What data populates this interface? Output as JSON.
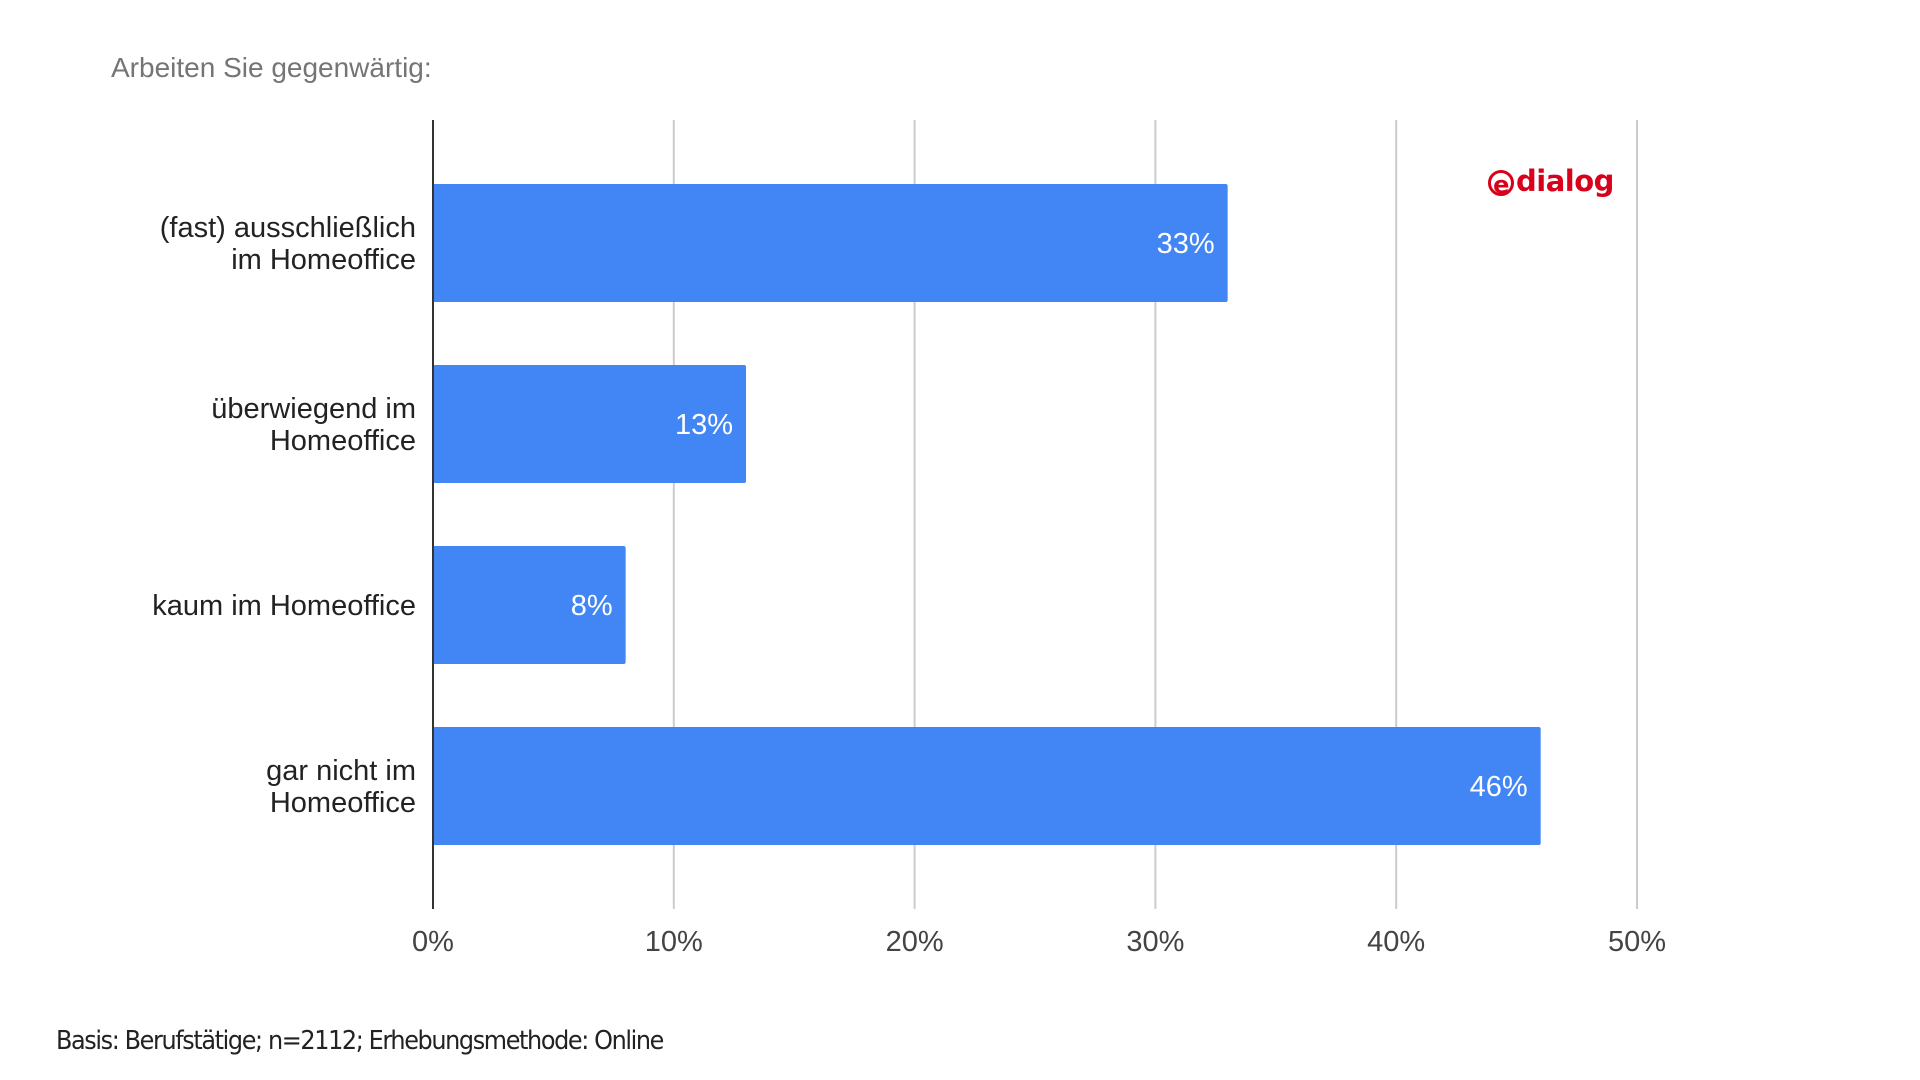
{
  "chart_data": {
    "type": "bar",
    "orientation": "horizontal",
    "title": "Arbeiten Sie gegenwärtig:",
    "categories": [
      [
        "(fast) ausschließlich",
        "im Homeoffice"
      ],
      [
        "überwiegend im",
        "Homeoffice"
      ],
      [
        "kaum im Homeoffice"
      ],
      [
        "gar nicht im",
        "Homeoffice"
      ]
    ],
    "values": [
      33,
      13,
      8,
      46
    ],
    "value_labels": [
      "33%",
      "13%",
      "8%",
      "46%"
    ],
    "xlim": [
      0,
      50
    ],
    "xticks": [
      0,
      10,
      20,
      30,
      40,
      50
    ],
    "xtick_labels": [
      "0%",
      "10%",
      "20%",
      "30%",
      "40%",
      "50%"
    ],
    "xlabel": "",
    "ylabel": "",
    "grid": true,
    "bar_color": "#4285f4"
  },
  "logo": {
    "text": "@dialog",
    "e": "e",
    "rest": "dialog",
    "color": "#d9001b"
  },
  "footer": "Basis: Berufstätige; n=2112; Erhebungsmethode: Online"
}
